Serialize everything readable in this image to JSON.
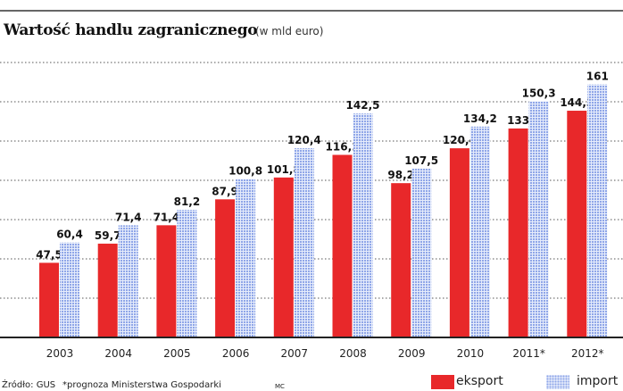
{
  "title": "Wartość handlu zagranicznego",
  "subtitle": "(w mld euro)",
  "source": "Źródło: GUS",
  "note": "*prognoza Ministerstwa Gospodarki",
  "author": "MC",
  "colors": {
    "eksport": "#e8282a",
    "import": "#9fb4ec"
  },
  "chart_data": {
    "type": "bar",
    "title": "Wartość handlu zagranicznego",
    "subtitle": "(w mld euro)",
    "categories": [
      "2003",
      "2004",
      "2005",
      "2006",
      "2007",
      "2008",
      "2009",
      "2010",
      "2011*",
      "2012*"
    ],
    "series": [
      {
        "name": "eksport",
        "values": [
          47.5,
          59.7,
          71.4,
          87.9,
          101.8,
          116.2,
          98.2,
          120.4,
          133,
          144.3
        ],
        "labels": [
          "47,5",
          "59,7",
          "71,4",
          "87,9",
          "101,8",
          "116,2",
          "98,2",
          "120,4",
          "133",
          "144,3"
        ]
      },
      {
        "name": "import",
        "values": [
          60.4,
          71.4,
          81.2,
          100.8,
          120.4,
          142.5,
          107.5,
          134.2,
          150.3,
          161
        ],
        "labels": [
          "60,4",
          "71,4",
          "81,2",
          "100,8",
          "120,4",
          "142,5",
          "107,5",
          "134,2",
          "150,3",
          "161"
        ]
      }
    ],
    "ylim": [
      0,
      175
    ],
    "grid": true,
    "legend": "bottom-right"
  }
}
